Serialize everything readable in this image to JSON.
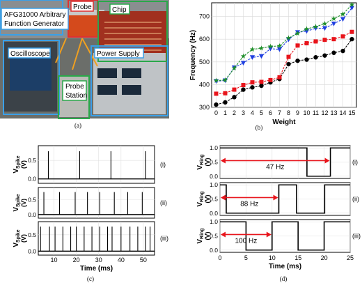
{
  "panel_labels": [
    "(a)",
    "(b)",
    "(c)",
    "(d)"
  ],
  "photo_labels": {
    "generator": "AFG31000 Arbitrary\nFunction Generator",
    "probe": "Probe",
    "chip": "Chip",
    "oscilloscope": "Oscilloscope",
    "power_supply": "Power Supply",
    "probe_station": "Probe\nStation"
  },
  "colors": {
    "black": "#000000",
    "red": "#e8141b",
    "blue": "#1f3fe0",
    "green": "#1f8f2a",
    "photo_blue": "#3aa0e8",
    "photo_green": "#2aa84a",
    "photo_orange": "#f0a020",
    "photo_red": "#e03030",
    "arrow_red": "#e8141b"
  },
  "chart_data": [
    {
      "type": "line",
      "xlabel": "Weight",
      "ylabel": "Frequency (Hz)",
      "x": [
        0,
        1,
        2,
        3,
        4,
        5,
        6,
        7,
        8,
        9,
        10,
        11,
        12,
        13,
        14,
        15
      ],
      "ylim": [
        300,
        760
      ],
      "yticks": [
        300,
        400,
        500,
        600,
        700
      ],
      "grid": true,
      "series": [
        {
          "color": "#000000",
          "marker": "circle",
          "values": [
            312,
            322,
            345,
            378,
            388,
            395,
            410,
            425,
            490,
            505,
            510,
            520,
            528,
            540,
            548,
            600
          ]
        },
        {
          "color": "#e8141b",
          "marker": "square",
          "values": [
            360,
            362,
            378,
            398,
            410,
            412,
            420,
            432,
            522,
            572,
            582,
            590,
            597,
            600,
            612,
            632
          ]
        },
        {
          "color": "#1f3fe0",
          "marker": "triangle-down",
          "values": [
            415,
            418,
            475,
            495,
            520,
            525,
            558,
            555,
            598,
            630,
            635,
            648,
            648,
            668,
            688,
            738
          ]
        },
        {
          "color": "#1f8f2a",
          "marker": "star",
          "values": [
            418,
            420,
            472,
            525,
            555,
            560,
            568,
            570,
            605,
            625,
            645,
            655,
            668,
            690,
            710,
            752
          ]
        }
      ]
    },
    {
      "type": "line",
      "xlabel": "Time (ms)",
      "ylabel": "V_Spike (V)",
      "ylabel_main": "V",
      "ylabel_sub": "Spike",
      "ylabel_unit": "(V)",
      "xlim": [
        3,
        55
      ],
      "xticks": [
        10,
        20,
        30,
        40,
        50
      ],
      "yticks": [
        0.0,
        0.5
      ],
      "ylim": [
        -0.12,
        0.9
      ],
      "subplots": [
        {
          "tag": "(i)",
          "spikes": [
            7.5,
            21.5,
            35.5,
            51
          ]
        },
        {
          "tag": "(ii)",
          "spikes": [
            5.5,
            12.5,
            19.5,
            25,
            30.5,
            37,
            43,
            49.5
          ]
        },
        {
          "tag": "(iii)",
          "spikes": [
            4,
            8,
            10.5,
            14,
            17.5,
            20,
            23.5,
            27,
            30.5,
            34,
            36,
            40,
            44,
            47.5,
            51,
            53
          ]
        }
      ]
    },
    {
      "type": "line",
      "xlabel": "Time (ms)",
      "ylabel": "V_Ring (V)",
      "ylabel_main": "V",
      "ylabel_sub": "Ring",
      "ylabel_unit": "(V)",
      "xlim": [
        0,
        25
      ],
      "xticks": [
        0,
        5,
        10,
        15,
        20,
        25
      ],
      "yticks": [
        0.0,
        0.5,
        1.0
      ],
      "ylim": [
        -0.08,
        1.08
      ],
      "subplots": [
        {
          "tag": "(i)",
          "annotation": "47 Hz",
          "arrow": [
            0,
            21.2
          ],
          "segments": [
            [
              0,
              1.0
            ],
            [
              16.7,
              0.0
            ],
            [
              21.2,
              1.0
            ],
            [
              25,
              1.0
            ]
          ]
        },
        {
          "tag": "(ii)",
          "annotation": "88 Hz",
          "arrow": [
            0,
            11.3
          ],
          "segments": [
            [
              0,
              1.0
            ],
            [
              1.2,
              0.0
            ],
            [
              11.3,
              1.0
            ],
            [
              14.7,
              0.0
            ],
            [
              20.1,
              1.0
            ],
            [
              25,
              1.0
            ]
          ]
        },
        {
          "tag": "(iii)",
          "annotation": "100 Hz",
          "arrow": [
            0,
            10
          ],
          "segments": [
            [
              0,
              1.0
            ],
            [
              5,
              0.0
            ],
            [
              10,
              1.0
            ],
            [
              15,
              0.0
            ],
            [
              20,
              1.0
            ],
            [
              25,
              1.0
            ]
          ]
        }
      ]
    }
  ]
}
